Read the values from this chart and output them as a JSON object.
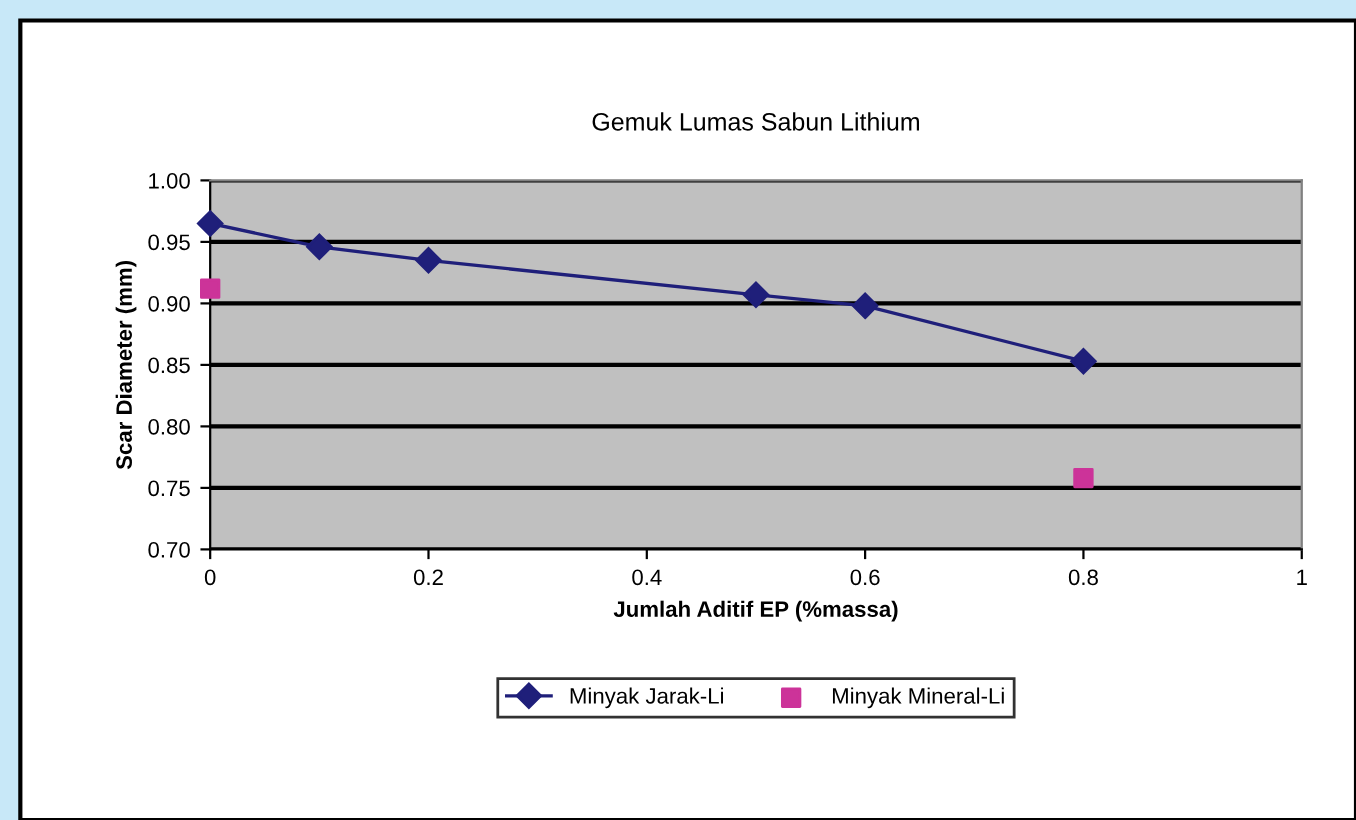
{
  "chart_data": {
    "type": "line",
    "title": "Gemuk Lumas Sabun Lithium",
    "xlabel": "Jumlah Aditif EP (%massa)",
    "ylabel": "Scar Diameter (mm)",
    "series": [
      {
        "name": "Minyak Jarak-Li",
        "color": "#1f1f7a",
        "marker": "diamond",
        "x": [
          0,
          0.1,
          0.2,
          0.5,
          0.6,
          0.8
        ],
        "values": [
          0.965,
          0.946,
          0.935,
          0.907,
          0.898,
          0.853
        ]
      },
      {
        "name": "Minyak Mineral-Li",
        "color": "#cc3399",
        "type": "scatter",
        "marker": "square",
        "x": [
          0,
          0.8
        ],
        "values": [
          0.912,
          0.758
        ]
      }
    ],
    "xlim": [
      0,
      1
    ],
    "xticks": [
      0,
      0.2,
      0.4,
      0.6,
      0.8,
      1
    ],
    "ylim": [
      0.7,
      1.0
    ],
    "yticks": [
      {
        "value": 0.7,
        "label": "0.70"
      },
      {
        "value": 0.75,
        "label": "0.75"
      },
      {
        "value": 0.8,
        "label": "0.80"
      },
      {
        "value": 0.85,
        "label": "0.85"
      },
      {
        "value": 0.9,
        "label": "0.90"
      },
      {
        "value": 0.95,
        "label": "0.95"
      },
      {
        "value": 1.0,
        "label": "1.00"
      }
    ],
    "grid": "y",
    "legend": "bottom"
  }
}
